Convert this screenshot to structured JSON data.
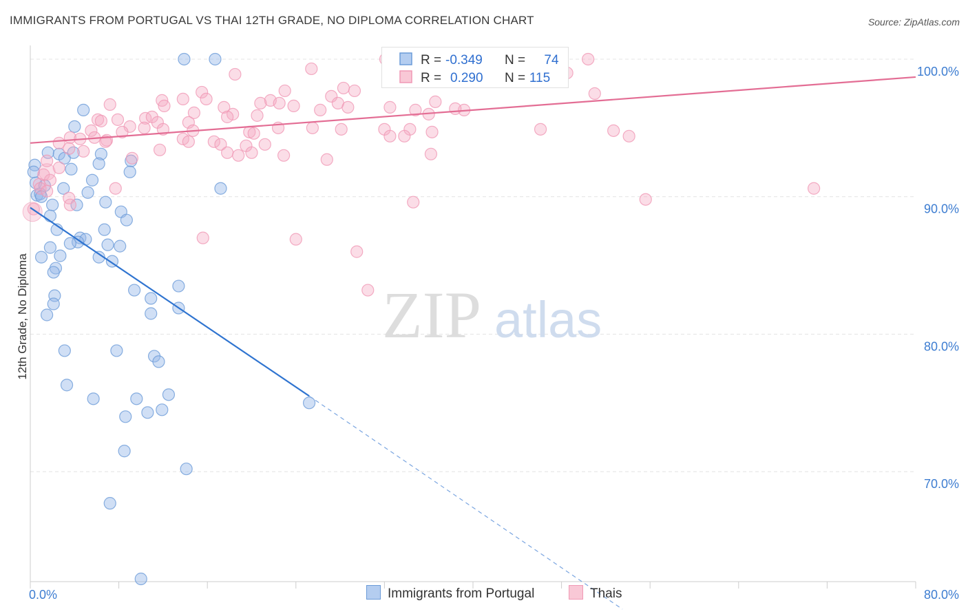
{
  "title": "IMMIGRANTS FROM PORTUGAL VS THAI 12TH GRADE, NO DIPLOMA CORRELATION CHART",
  "source": "Source: ZipAtlas.com",
  "watermark": {
    "zip": "ZIP",
    "atlas": "atlas"
  },
  "legend_top": {
    "rows": [
      {
        "r_label": "R =",
        "r_value": "-0.349",
        "n_label": "N =",
        "n_value": "74",
        "color": "#6b9bd8"
      },
      {
        "r_label": "R =",
        "r_value": "0.290",
        "n_label": "N =",
        "n_value": "115",
        "color": "#f099b5"
      }
    ]
  },
  "legend_bottom": [
    {
      "label": "Immigrants from Portugal",
      "color": "#6b9bd8"
    },
    {
      "label": "Thais",
      "color": "#f099b5"
    }
  ],
  "chart_data": {
    "type": "scatter",
    "title": "IMMIGRANTS FROM PORTUGAL VS THAI 12TH GRADE, NO DIPLOMA CORRELATION CHART",
    "ylabel": "12th Grade, No Diploma",
    "xlabel": "",
    "xlim": [
      0,
      80
    ],
    "ylim": [
      62,
      101
    ],
    "x_tick_labels": [
      "0.0%",
      "80.0%"
    ],
    "y_ticks": [
      70,
      80,
      90,
      100
    ],
    "y_tick_labels": [
      "70.0%",
      "80.0%",
      "90.0%",
      "100.0%"
    ],
    "grid": true,
    "series": [
      {
        "name": "Immigrants from Portugal",
        "color": "#6b9bd8",
        "trend": {
          "x": [
            0,
            25.2
          ],
          "y": [
            89.2,
            75.5
          ],
          "dashed_to": [
            53.5,
            60.0
          ]
        },
        "points": [
          [
            13.9,
            100.0
          ],
          [
            16.7,
            100.0
          ],
          [
            4.8,
            96.3
          ],
          [
            4.0,
            95.1
          ],
          [
            1.6,
            93.2
          ],
          [
            2.6,
            93.1
          ],
          [
            3.1,
            92.8
          ],
          [
            3.9,
            93.2
          ],
          [
            6.4,
            93.1
          ],
          [
            9.1,
            92.6
          ],
          [
            0.4,
            92.3
          ],
          [
            0.3,
            91.8
          ],
          [
            3.7,
            92.0
          ],
          [
            6.2,
            92.4
          ],
          [
            9.0,
            91.8
          ],
          [
            0.5,
            91.0
          ],
          [
            1.3,
            90.8
          ],
          [
            0.6,
            90.1
          ],
          [
            0.9,
            90.2
          ],
          [
            1.0,
            90.0
          ],
          [
            3.0,
            90.6
          ],
          [
            5.2,
            90.3
          ],
          [
            5.6,
            91.2
          ],
          [
            17.2,
            90.6
          ],
          [
            2.0,
            89.4
          ],
          [
            4.2,
            89.4
          ],
          [
            6.8,
            89.6
          ],
          [
            8.2,
            88.9
          ],
          [
            8.7,
            88.3
          ],
          [
            1.8,
            88.6
          ],
          [
            2.4,
            87.6
          ],
          [
            6.7,
            87.6
          ],
          [
            4.5,
            87.0
          ],
          [
            5.0,
            86.9
          ],
          [
            4.3,
            86.7
          ],
          [
            1.8,
            86.3
          ],
          [
            3.6,
            86.6
          ],
          [
            7.0,
            86.5
          ],
          [
            8.1,
            86.4
          ],
          [
            1.0,
            85.6
          ],
          [
            2.7,
            85.7
          ],
          [
            6.2,
            85.6
          ],
          [
            7.4,
            85.3
          ],
          [
            2.3,
            84.8
          ],
          [
            2.1,
            84.5
          ],
          [
            13.4,
            83.5
          ],
          [
            9.4,
            83.2
          ],
          [
            2.2,
            82.8
          ],
          [
            10.9,
            82.6
          ],
          [
            2.1,
            82.2
          ],
          [
            13.4,
            81.9
          ],
          [
            1.5,
            81.4
          ],
          [
            10.9,
            81.5
          ],
          [
            3.1,
            78.8
          ],
          [
            7.8,
            78.8
          ],
          [
            11.2,
            78.4
          ],
          [
            11.6,
            78.0
          ],
          [
            3.3,
            76.3
          ],
          [
            12.5,
            75.6
          ],
          [
            5.7,
            75.3
          ],
          [
            9.6,
            75.3
          ],
          [
            25.2,
            75.0
          ],
          [
            10.6,
            74.3
          ],
          [
            11.9,
            74.5
          ],
          [
            8.6,
            74.0
          ],
          [
            8.5,
            71.5
          ],
          [
            14.1,
            70.2
          ],
          [
            7.2,
            67.7
          ],
          [
            10.0,
            62.2
          ]
        ]
      },
      {
        "name": "Thais",
        "color": "#f099b5",
        "trend": {
          "x": [
            0,
            80
          ],
          "y": [
            93.9,
            98.7
          ]
        },
        "points": [
          [
            32.1,
            100.0
          ],
          [
            50.4,
            100.0
          ],
          [
            25.4,
            99.3
          ],
          [
            18.5,
            98.9
          ],
          [
            48.5,
            99.0
          ],
          [
            28.3,
            97.9
          ],
          [
            23.0,
            97.7
          ],
          [
            29.3,
            97.7
          ],
          [
            15.5,
            97.6
          ],
          [
            27.2,
            97.3
          ],
          [
            51.0,
            97.5
          ],
          [
            15.9,
            97.1
          ],
          [
            11.9,
            97.0
          ],
          [
            13.8,
            97.1
          ],
          [
            21.7,
            97.0
          ],
          [
            22.5,
            96.8
          ],
          [
            20.8,
            96.8
          ],
          [
            17.5,
            96.5
          ],
          [
            27.8,
            96.8
          ],
          [
            36.6,
            96.9
          ],
          [
            32.5,
            96.5
          ],
          [
            7.2,
            96.7
          ],
          [
            12.1,
            96.6
          ],
          [
            23.8,
            96.6
          ],
          [
            26.2,
            96.3
          ],
          [
            34.8,
            96.3
          ],
          [
            39.2,
            96.3
          ],
          [
            38.4,
            96.4
          ],
          [
            14.8,
            96.1
          ],
          [
            18.3,
            96.0
          ],
          [
            20.5,
            95.9
          ],
          [
            36.0,
            96.0
          ],
          [
            6.1,
            95.6
          ],
          [
            7.9,
            95.6
          ],
          [
            10.4,
            95.7
          ],
          [
            11.0,
            95.8
          ],
          [
            17.8,
            95.8
          ],
          [
            6.4,
            95.5
          ],
          [
            11.5,
            95.4
          ],
          [
            14.3,
            95.4
          ],
          [
            9.0,
            95.1
          ],
          [
            10.3,
            95.0
          ],
          [
            5.5,
            94.8
          ],
          [
            8.3,
            94.7
          ],
          [
            12.0,
            94.9
          ],
          [
            14.7,
            94.8
          ],
          [
            19.8,
            94.7
          ],
          [
            20.2,
            94.6
          ],
          [
            22.4,
            95.0
          ],
          [
            25.5,
            95.0
          ],
          [
            28.1,
            94.9
          ],
          [
            32.0,
            94.9
          ],
          [
            34.3,
            94.9
          ],
          [
            36.3,
            94.7
          ],
          [
            46.1,
            94.9
          ],
          [
            52.7,
            94.8
          ],
          [
            3.6,
            94.3
          ],
          [
            4.5,
            94.2
          ],
          [
            5.8,
            94.3
          ],
          [
            6.9,
            94.1
          ],
          [
            13.8,
            94.2
          ],
          [
            14.3,
            94.0
          ],
          [
            16.6,
            94.0
          ],
          [
            17.2,
            93.8
          ],
          [
            19.5,
            93.7
          ],
          [
            32.5,
            94.4
          ],
          [
            33.8,
            94.4
          ],
          [
            54.1,
            94.4
          ],
          [
            2.6,
            93.9
          ],
          [
            3.5,
            93.5
          ],
          [
            4.8,
            93.3
          ],
          [
            9.2,
            92.8
          ],
          [
            17.8,
            93.2
          ],
          [
            18.8,
            93.0
          ],
          [
            20.0,
            93.2
          ],
          [
            22.9,
            93.0
          ],
          [
            26.8,
            92.7
          ],
          [
            1.5,
            92.6
          ],
          [
            2.6,
            92.1
          ],
          [
            1.2,
            91.6
          ],
          [
            1.8,
            91.2
          ],
          [
            0.8,
            90.9
          ],
          [
            0.9,
            90.6
          ],
          [
            1.5,
            90.4
          ],
          [
            0.3,
            89.1
          ],
          [
            3.5,
            89.9
          ],
          [
            7.7,
            90.6
          ],
          [
            3.6,
            89.4
          ],
          [
            34.6,
            89.6
          ],
          [
            55.6,
            89.8
          ],
          [
            70.8,
            90.6
          ],
          [
            15.6,
            87.0
          ],
          [
            24.0,
            86.9
          ],
          [
            29.5,
            86.0
          ],
          [
            30.5,
            83.2
          ],
          [
            6.8,
            94.0
          ],
          [
            11.7,
            93.4
          ],
          [
            21.2,
            93.8
          ],
          [
            36.2,
            93.1
          ],
          [
            28.7,
            96.5
          ]
        ]
      }
    ]
  }
}
